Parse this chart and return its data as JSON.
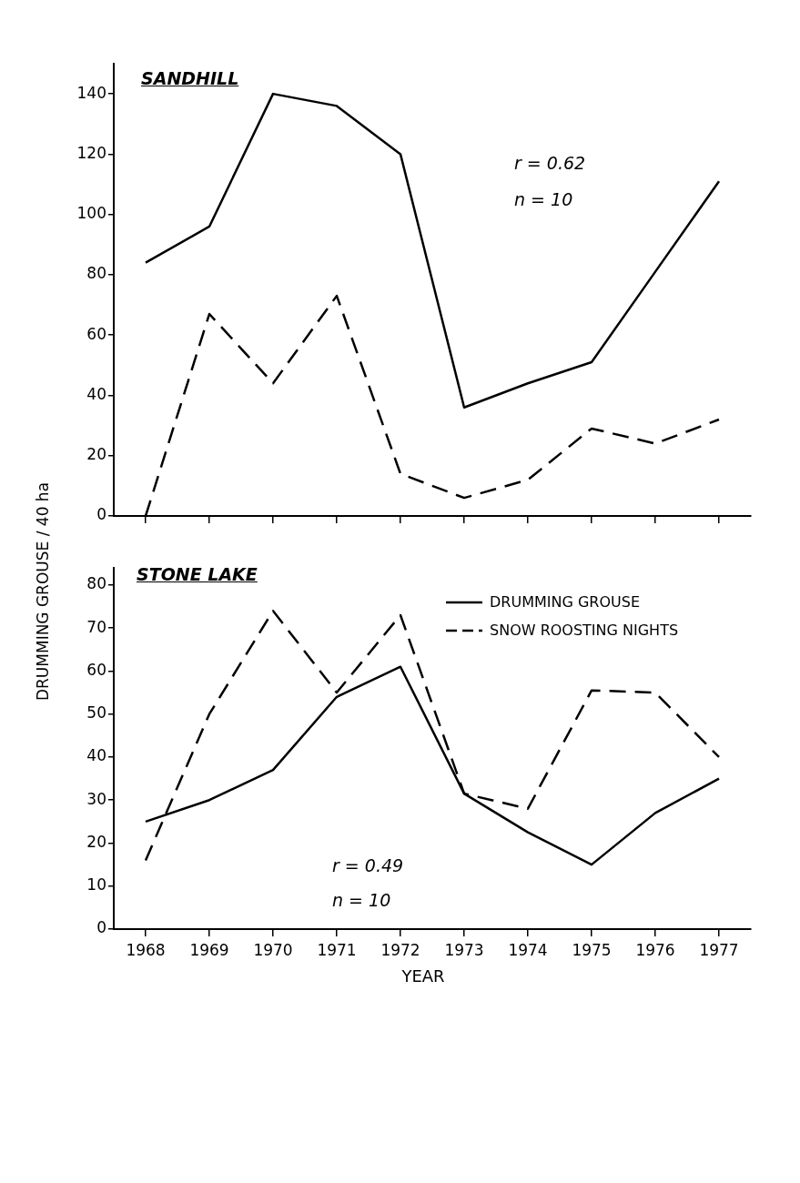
{
  "chart_data": [
    {
      "type": "line",
      "title": "SANDHILL",
      "ylabel": "DRUMMING GROUSE / 40 ha",
      "categories": [
        "1968",
        "1969",
        "1970",
        "1971",
        "1972",
        "1973",
        "1974",
        "1975",
        "1976",
        "1977"
      ],
      "series": [
        {
          "color": "#000000",
          "line_style": "solid",
          "values": [
            84,
            96,
            140,
            136,
            120,
            36,
            44,
            51,
            81,
            111
          ]
        },
        {
          "color": "#000000",
          "line_style": "dashed",
          "values": [
            0,
            67,
            44,
            73,
            14,
            6,
            12,
            29,
            24,
            32
          ]
        }
      ],
      "ylim": [
        0,
        150
      ],
      "yticks": [
        0,
        20,
        40,
        60,
        80,
        100,
        120,
        140
      ],
      "grid": false,
      "legend": false,
      "marker": "none",
      "tick_labels": "y",
      "annotations": [
        "r = 0.62",
        "n = 10"
      ]
    },
    {
      "type": "line",
      "title": "STONE LAKE",
      "xlabel": "YEAR",
      "categories": [
        "1968",
        "1969",
        "1970",
        "1971",
        "1972",
        "1973",
        "1974",
        "1975",
        "1976",
        "1977"
      ],
      "series": [
        {
          "name": "DRUMMING GROUSE",
          "color": "#000000",
          "line_style": "solid",
          "values": [
            25,
            30,
            37,
            54,
            61,
            31.5,
            22.5,
            15,
            27,
            35
          ]
        },
        {
          "name": "SNOW ROOSTING NIGHTS",
          "color": "#000000",
          "line_style": "dashed",
          "values": [
            16,
            50,
            74,
            55,
            73,
            31.5,
            28,
            55.5,
            55,
            40
          ]
        }
      ],
      "ylim": [
        0,
        84
      ],
      "yticks": [
        0,
        10,
        20,
        30,
        40,
        50,
        60,
        70,
        80
      ],
      "grid": false,
      "legend": "top right",
      "marker": "none",
      "annotations": [
        "r = 0.49",
        "n = 10"
      ]
    }
  ]
}
